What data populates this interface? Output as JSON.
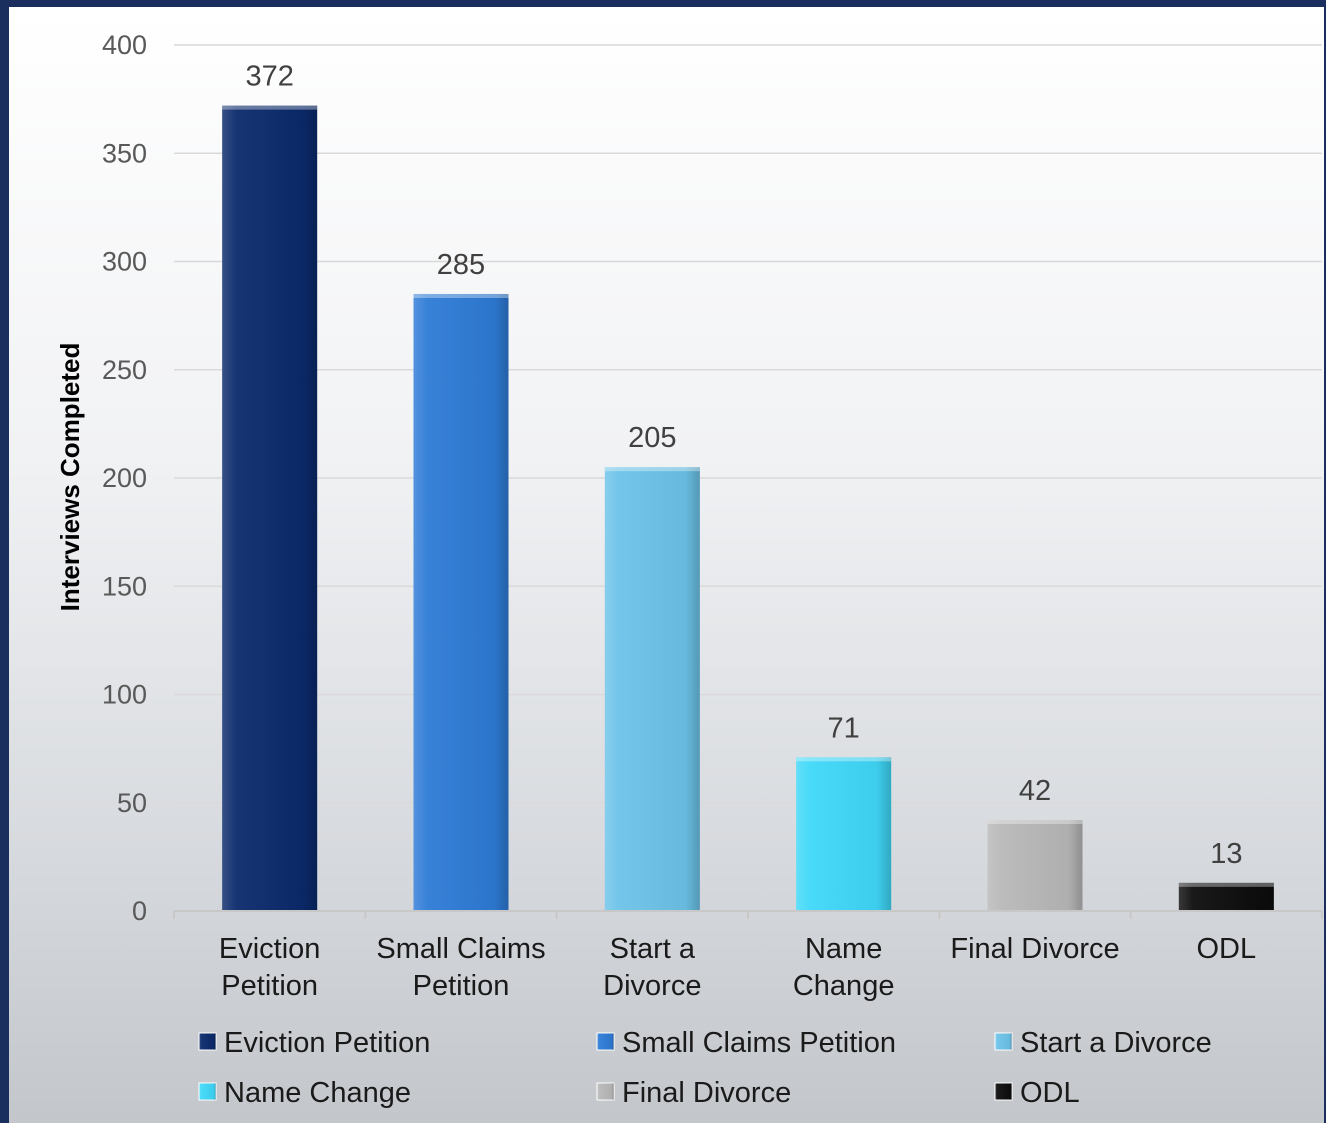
{
  "chart_data": {
    "type": "bar",
    "ylabel": "Interviews Completed",
    "ylim": [
      0,
      400
    ],
    "yticks": [
      0,
      50,
      100,
      150,
      200,
      250,
      300,
      350,
      400
    ],
    "grid": true,
    "legend_position": "bottom",
    "categories": [
      {
        "label": "Eviction Petition",
        "lines": [
          "Eviction",
          "Petition"
        ],
        "value": 372,
        "color": "#0b2a6b"
      },
      {
        "label": "Small Claims Petition",
        "lines": [
          "Small Claims",
          "Petition"
        ],
        "value": 285,
        "color": "#2e7bd6"
      },
      {
        "label": "Start a Divorce",
        "lines": [
          "Start a",
          "Divorce"
        ],
        "value": 205,
        "color": "#6cc3e9"
      },
      {
        "label": "Name Change",
        "lines": [
          "Name",
          "Change"
        ],
        "value": 71,
        "color": "#3fd8f8"
      },
      {
        "label": "Final Divorce",
        "lines": [
          "Final Divorce"
        ],
        "value": 42,
        "color": "#b8b8b8"
      },
      {
        "label": "ODL",
        "lines": [
          "ODL"
        ],
        "value": 13,
        "color": "#0d0d0d"
      }
    ]
  }
}
